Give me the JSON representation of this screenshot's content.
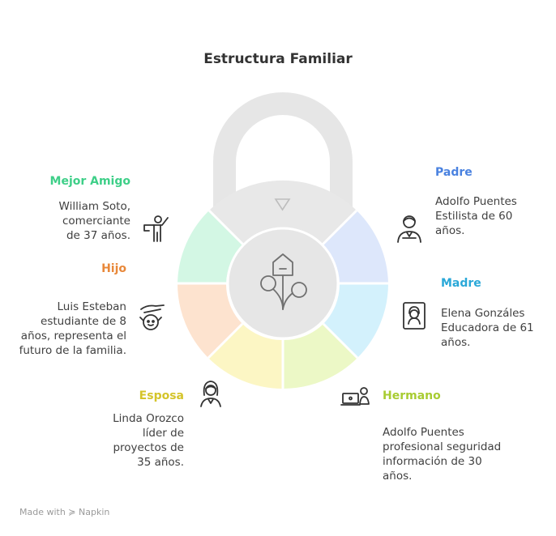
{
  "title": "Estructura Familiar",
  "footer": "Made with ≽ Napkin",
  "colors": {
    "mejor_amigo": "#3ecf88",
    "hijo": "#e8883a",
    "esposa": "#d4c42a",
    "hermano": "#a8cc32",
    "madre": "#2aa8d8",
    "padre": "#4a82e0"
  },
  "members": {
    "mejor_amigo": {
      "label": "Mejor Amigo",
      "desc": "William Soto,\ncomerciante\nde 37 años."
    },
    "hijo": {
      "label": "Hijo",
      "desc": "Luis Esteban\nestudiante de 8\naños, representa el\nfuturo de la familia."
    },
    "esposa": {
      "label": "Esposa",
      "desc": "Linda Orozco\nlíder de\nproyectos de\n35 años."
    },
    "padre": {
      "label": "Padre",
      "desc": "Adolfo Puentes\nEstilista de 60\naños."
    },
    "madre": {
      "label": "Madre",
      "desc": "Elena Gonzáles\nEducadora de 61\naños."
    },
    "hermano": {
      "label": "Hermano",
      "desc": "Adolfo Puentes\nprofesional seguridad\ninformación de 30\naños."
    }
  },
  "icons": {
    "mejor_amigo": "pointing-person-icon",
    "hijo": "child-hand-icon",
    "esposa": "woman-icon",
    "padre": "man-icon",
    "madre": "portrait-icon",
    "hermano": "laptop-user-icon",
    "center": "family-tree-icon"
  }
}
